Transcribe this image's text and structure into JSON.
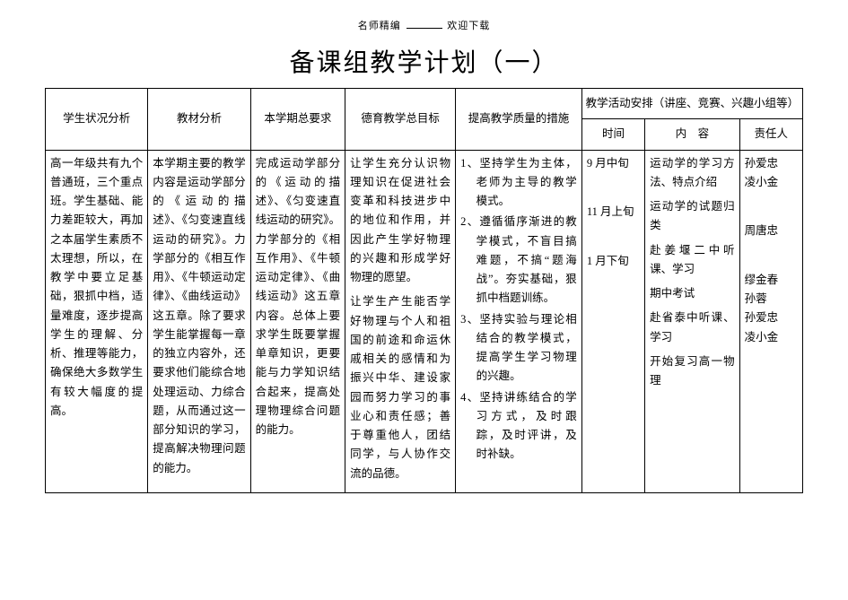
{
  "smallHeader": {
    "left": "名师精编",
    "right": "欢迎下载"
  },
  "title": "备课组教学计划（一）",
  "headers": {
    "c1": "学生状况分析",
    "c2": "教材分析",
    "c3": "本学期总要求",
    "c4": "德育教学总目标",
    "c5": "提高教学质量的措施",
    "c6group": "教学活动安排（讲座、竞赛、兴趣小组等）",
    "c6a": "时间",
    "c6b": "内　容",
    "c6c": "责任人"
  },
  "col1": "高一年级共有九个普通班，三个重点班。学生基础、能力差距较大，再加之本届学生素质不太理想，所以，在教学中要立足基础，狠抓中档，适量难度，逐步提高学生的理解、分析、推理等能力，确保绝大多数学生有较大幅度的提高。",
  "col2": "本学期主要的教学内容是运动学部分的《运动的描述》、《匀变速直线运动的研究》。力学部分的《相互作用》、《牛顿运动定律》、《曲线运动》这五章。除了要求学生能掌握每一章的独立内容外，还要求他们能综合地处理运动、力综合题，从而通过这一部分知识的学习，提高解决物理问题的能力。",
  "col3": "完成运动学部分的《运动的描述》、《匀变速直线运动的研究》。力学部分的《相互作用》、《牛顿运动定律》、《曲线运动》这五章内容。总体上要求学生既要掌握单章知识，更要能与力学知识结合起来，提高处理物理综合问题的能力。",
  "col4_p1": "让学生充分认识物理知识在促进社会变革和科技进步中的地位和作用，并因此产生学好物理的兴趣和形成学好物理的愿望。",
  "col4_p2": "让学生产生能否学好物理与个人和祖国的前途和命运休戚相关的感情和为振兴中华、建设家园而努力学习的事业心和责任感；善于尊重他人，团结同学，与人协作交流的品德。",
  "measures": [
    "坚持学生为主体，老师为主导的教学模式。",
    "遵循循序渐进的教学模式，不盲目搞难题，不搞“题海战”。夯实基础，狠抓中档题训练。",
    "坚持实验与理论相结合的教学模式，提高学生学习物理的兴趣。",
    "坚持讲练结合的学习方式，及时跟踪，及时评讲，及时补缺。"
  ],
  "schedule": [
    {
      "time": "9 月中旬",
      "content": "运动学的学习方法、特点介绍",
      "person": "孙爱忠\n凌小金"
    },
    {
      "time": "",
      "content": "运动学的试题归类",
      "person": ""
    },
    {
      "time": "11 月上旬",
      "content": "赴姜堰二中听课、学习",
      "person": "周唐忠"
    },
    {
      "time": "",
      "content": "期中考试",
      "person": ""
    },
    {
      "time": "1 月下旬",
      "content": "赴省泰中听课、学习",
      "person": "缪金春\n孙蓉\n孙爱忠\n凌小金"
    },
    {
      "time": "",
      "content": "开始复习高一物理",
      "person": ""
    }
  ]
}
